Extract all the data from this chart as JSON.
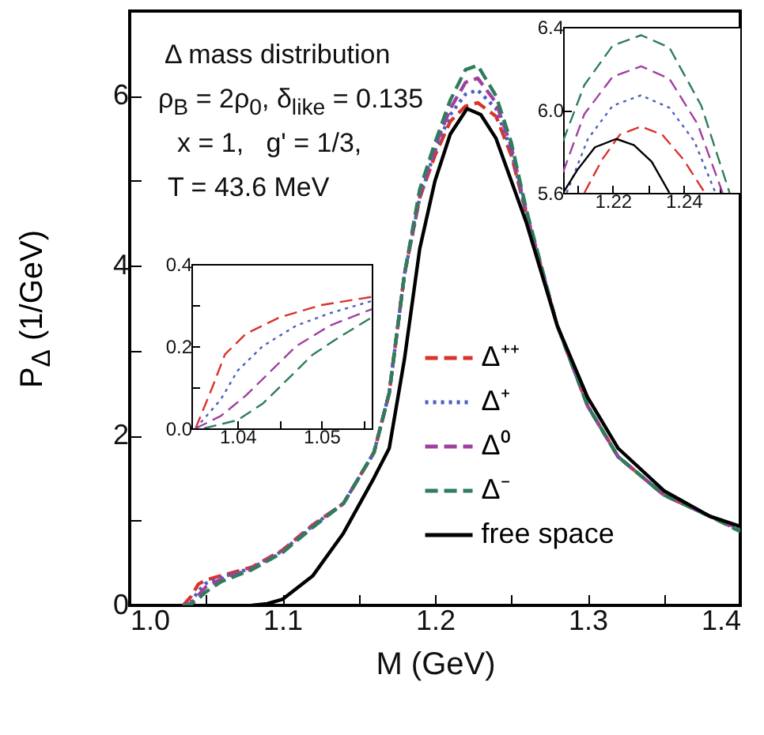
{
  "chart_data": [
    {
      "type": "line",
      "xlabel": "M (GeV)",
      "ylabel": "P$_{Δ}$ (1/GeV)",
      "annotations": [
        "Δ mass distribution",
        "ρ$_{B}$ = 2ρ$_{0}$, δ$_{like}$ = 0.135",
        "x = 1,   g' = 1/3,",
        "T = 43.6 MeV"
      ],
      "xlim": [
        1.0,
        1.4
      ],
      "ylim": [
        0,
        7
      ],
      "xticks": [
        {
          "value": 1,
          "label": "1.0"
        },
        {
          "value": 1.05,
          "label": null
        },
        1.1,
        {
          "value": 1.15,
          "label": null
        },
        1.2,
        {
          "value": 1.25,
          "label": null
        },
        1.3,
        {
          "value": 1.35,
          "label": null
        },
        {
          "value": 1.4,
          "label": "1.4"
        }
      ],
      "yticks": [
        0,
        {
          "value": 1,
          "label": null
        },
        2,
        {
          "value": 3,
          "label": null
        },
        4,
        {
          "value": 5,
          "label": null
        },
        6
      ],
      "legend": "right",
      "x": [
        1.035,
        1.04,
        1.045,
        1.05,
        1.06,
        1.08,
        1.1,
        1.12,
        1.14,
        1.16,
        1.17,
        1.18,
        1.19,
        1.2,
        1.21,
        1.22,
        1.228,
        1.24,
        1.25,
        1.26,
        1.28,
        1.3,
        1.32,
        1.35,
        1.38,
        1.4
      ],
      "series": [
        {
          "name": "Δ⁺⁺",
          "color": "#d9342b",
          "line_style": "dashed",
          "values": [
            0,
            0.1,
            0.25,
            0.3,
            0.35,
            0.45,
            0.65,
            0.95,
            1.2,
            1.8,
            2.5,
            3.9,
            4.8,
            5.3,
            5.7,
            5.88,
            5.92,
            5.76,
            5.3,
            4.6,
            3.3,
            2.35,
            1.75,
            1.3,
            1.05,
            0.9
          ]
        },
        {
          "name": "Δ⁺",
          "color": "#4a5fc1",
          "line_style": "dotted",
          "values": [
            0,
            0.03,
            0.17,
            0.26,
            0.33,
            0.44,
            0.64,
            0.94,
            1.2,
            1.8,
            2.5,
            3.9,
            4.8,
            5.35,
            5.78,
            6.02,
            6.07,
            5.85,
            5.35,
            4.6,
            3.3,
            2.35,
            1.75,
            1.3,
            1.05,
            0.9
          ]
        },
        {
          "name": "Δ⁰",
          "color": "#a040a0",
          "line_style": "dashed",
          "values": [
            0,
            0.02,
            0.12,
            0.22,
            0.31,
            0.43,
            0.63,
            0.93,
            1.2,
            1.8,
            2.5,
            3.9,
            4.85,
            5.4,
            5.85,
            6.16,
            6.21,
            5.92,
            5.4,
            4.62,
            3.3,
            2.35,
            1.75,
            1.3,
            1.05,
            0.88
          ]
        },
        {
          "name": "Δ⁻",
          "color": "#2e7d5b",
          "line_style": "dashed",
          "values": [
            0,
            0.01,
            0.08,
            0.16,
            0.28,
            0.42,
            0.62,
            0.92,
            1.2,
            1.8,
            2.5,
            3.9,
            4.9,
            5.45,
            5.95,
            6.31,
            6.36,
            6.0,
            5.45,
            4.65,
            3.3,
            2.35,
            1.75,
            1.3,
            1.05,
            0.87
          ]
        },
        {
          "name": "free space",
          "color": "#000000",
          "line_style": "solid",
          "x": [
            1.08,
            1.09,
            1.1,
            1.12,
            1.14,
            1.16,
            1.17,
            1.18,
            1.19,
            1.2,
            1.21,
            1.221,
            1.23,
            1.24,
            1.26,
            1.28,
            1.3,
            1.32,
            1.35,
            1.38,
            1.4
          ],
          "values": [
            0,
            0.02,
            0.07,
            0.35,
            0.85,
            1.5,
            1.85,
            2.9,
            4.2,
            5.0,
            5.55,
            5.85,
            5.78,
            5.5,
            4.5,
            3.3,
            2.45,
            1.85,
            1.35,
            1.05,
            0.93
          ]
        }
      ]
    },
    {
      "type": "line",
      "xlim": [
        1.206,
        1.256
      ],
      "ylim": [
        5.6,
        6.4
      ],
      "xticks": [
        {
          "value": 1.21,
          "label": null
        },
        1.22,
        {
          "value": 1.23,
          "label": null
        },
        1.24,
        {
          "value": 1.25,
          "label": null
        }
      ],
      "yticks": [
        5.6,
        {
          "value": 6,
          "label": "6.0"
        },
        6.4
      ],
      "series": [
        {
          "color": "#d9342b",
          "line_style": "dashed",
          "x": [
            1.212,
            1.217,
            1.222,
            1.228,
            1.234,
            1.24,
            1.246
          ],
          "values": [
            5.6,
            5.76,
            5.88,
            5.92,
            5.88,
            5.76,
            5.6
          ]
        },
        {
          "color": "#4a5fc1",
          "line_style": "dotted",
          "x": [
            1.207,
            1.213,
            1.22,
            1.228,
            1.236,
            1.243,
            1.249
          ],
          "values": [
            5.6,
            5.86,
            6.02,
            6.07,
            6.01,
            5.85,
            5.6
          ]
        },
        {
          "color": "#a040a0",
          "line_style": "dashed",
          "x": [
            1.206,
            1.212,
            1.22,
            1.228,
            1.236,
            1.244,
            1.251
          ],
          "values": [
            5.7,
            5.98,
            6.16,
            6.21,
            6.15,
            5.93,
            5.6
          ]
        },
        {
          "color": "#2e7d5b",
          "line_style": "dashed",
          "x": [
            1.206,
            1.212,
            1.22,
            1.228,
            1.236,
            1.245,
            1.253
          ],
          "values": [
            5.85,
            6.12,
            6.31,
            6.36,
            6.3,
            6.02,
            5.6
          ]
        },
        {
          "color": "#000000",
          "line_style": "solid",
          "x": [
            1.206,
            1.21,
            1.215,
            1.221,
            1.226,
            1.231,
            1.236
          ],
          "values": [
            5.6,
            5.71,
            5.82,
            5.86,
            5.83,
            5.75,
            5.6
          ]
        }
      ]
    },
    {
      "type": "line",
      "xlim": [
        1.0345,
        1.056
      ],
      "ylim": [
        0,
        0.4
      ],
      "xticks": [
        1.04,
        {
          "value": 1.045,
          "label": null
        },
        1.05,
        {
          "value": 1.055,
          "label": null
        }
      ],
      "yticks": [
        {
          "value": 0,
          "label": "0.0"
        },
        {
          "value": 0.1,
          "label": null
        },
        0.2,
        {
          "value": 0.3,
          "label": null
        },
        0.4
      ],
      "series": [
        {
          "color": "#d9342b",
          "line_style": "dashed",
          "x": [
            1.035,
            1.037,
            1.0385,
            1.041,
            1.045,
            1.05,
            1.056
          ],
          "values": [
            0,
            0.1,
            0.18,
            0.23,
            0.27,
            0.3,
            0.32
          ]
        },
        {
          "color": "#4a5fc1",
          "line_style": "dotted",
          "x": [
            1.035,
            1.038,
            1.04,
            1.043,
            1.047,
            1.051,
            1.056
          ],
          "values": [
            0,
            0.07,
            0.14,
            0.2,
            0.25,
            0.28,
            0.31
          ]
        },
        {
          "color": "#a040a0",
          "line_style": "dashed",
          "x": [
            1.035,
            1.038,
            1.041,
            1.044,
            1.047,
            1.051,
            1.056
          ],
          "values": [
            0,
            0.03,
            0.08,
            0.14,
            0.2,
            0.25,
            0.29
          ]
        },
        {
          "color": "#2e7d5b",
          "line_style": "dashed",
          "x": [
            1.036,
            1.04,
            1.043,
            1.046,
            1.049,
            1.052,
            1.056
          ],
          "values": [
            0,
            0.02,
            0.06,
            0.12,
            0.18,
            0.22,
            0.27
          ]
        }
      ]
    }
  ]
}
